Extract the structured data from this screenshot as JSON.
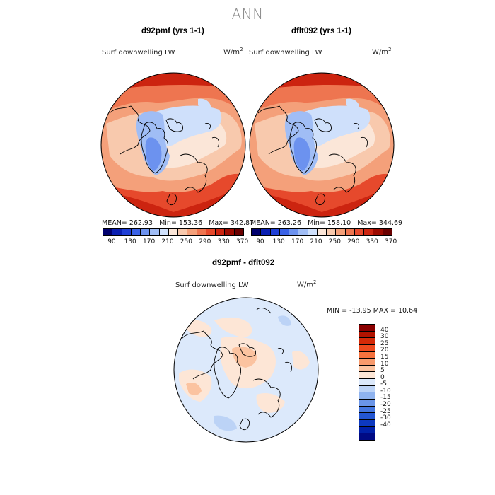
{
  "suptitle": "ANN",
  "panels": [
    {
      "title": "d92pmf (yrs 1-1)",
      "variable": "Surf downwelling LW",
      "units_base": "W/m",
      "units_exp": "2",
      "mean": "MEAN= 262.93",
      "min": "Min= 153.36",
      "max": "Max= 342.87"
    },
    {
      "title": "dflt092 (yrs 1-1)",
      "variable": "Surf downwelling LW",
      "units_base": "W/m",
      "units_exp": "2",
      "mean": "MEAN= 263.26",
      "min": "Min= 158.10",
      "max": "Max= 344.69"
    }
  ],
  "diff": {
    "title": "d92pmf - dflt092",
    "variable": "Surf downwelling LW",
    "units_base": "W/m",
    "units_exp": "2",
    "minmax": "MIN = -13.95 MAX =  10.64"
  },
  "colorbar_top": {
    "colors": [
      "#00006e",
      "#0a1fb2",
      "#1f3fd6",
      "#3a62e6",
      "#6c92ef",
      "#a0bdf5",
      "#cfe0fb",
      "#fbe6d8",
      "#f8c9ad",
      "#f4a07a",
      "#ee7550",
      "#e6492c",
      "#cc2410",
      "#9c0a00",
      "#6a0000"
    ],
    "ticks": [
      "90",
      "130",
      "170",
      "210",
      "250",
      "290",
      "330",
      "370"
    ]
  },
  "colorbar_diff": {
    "colors": [
      "#8a0000",
      "#b21300",
      "#d52a08",
      "#ee4a1e",
      "#f5723e",
      "#f89a6c",
      "#fbc3a0",
      "#fde6d6",
      "#dce9fb",
      "#bcd3f6",
      "#8fb3ef",
      "#6a95e8",
      "#4476df",
      "#2457d3",
      "#0d39c0",
      "#0020a8",
      "#000a84"
    ],
    "ticks": [
      "40",
      "30",
      "25",
      "20",
      "15",
      "10",
      "5",
      "0",
      "-5",
      "-10",
      "-15",
      "-20",
      "-25",
      "-30",
      "-40"
    ]
  }
}
